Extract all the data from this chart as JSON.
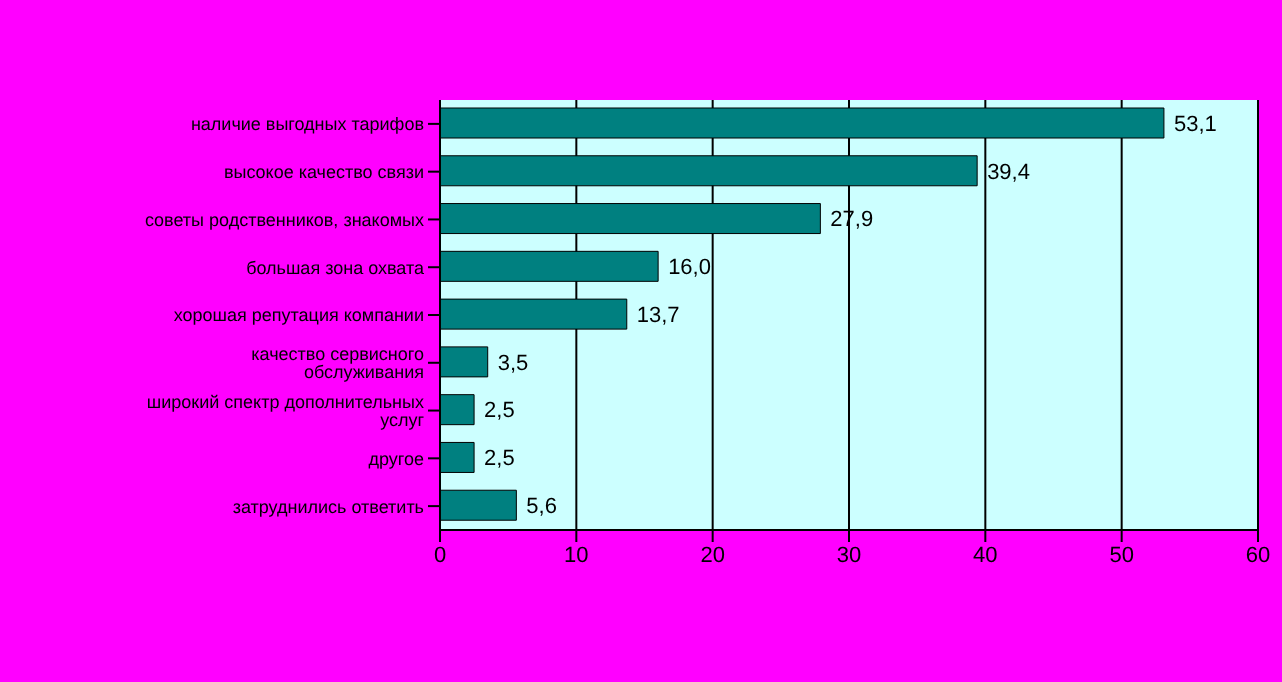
{
  "chart_data": {
    "type": "bar",
    "orientation": "horizontal",
    "categories": [
      "наличие выгодных тарифов",
      "высокое качество связи",
      "советы родственников, знакомых",
      "большая зона охвата",
      "хорошая репутация компании",
      "качество сервисного обслуживания",
      "широкий спектр дополнительных услуг",
      "другое",
      "затруднились ответить"
    ],
    "values": [
      53.1,
      39.4,
      27.9,
      16.0,
      13.7,
      3.5,
      2.5,
      2.5,
      5.6
    ],
    "value_labels": [
      "53,1",
      "39,4",
      "27,9",
      "16,0",
      "13,7",
      "3,5",
      "2,5",
      "2,5",
      "5,6"
    ],
    "color": "#008080",
    "xlim": [
      0,
      60
    ],
    "xticks": [
      0,
      10,
      20,
      30,
      40,
      50,
      60
    ],
    "grid": "x",
    "legend": false
  }
}
